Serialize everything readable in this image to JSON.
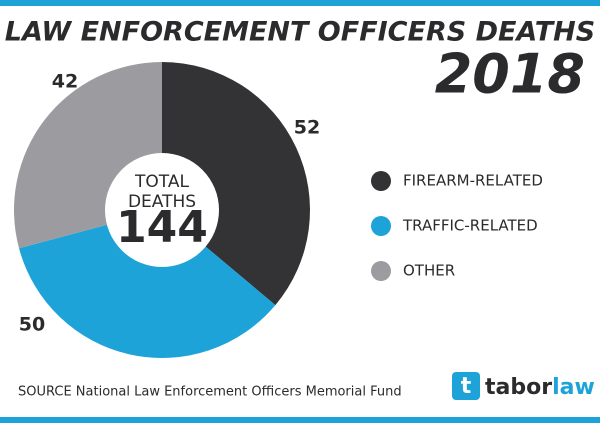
{
  "chart_data": {
    "type": "donut",
    "title": "LAW ENFORCEMENT OFFICERS DEATHS",
    "subtitle": "2018",
    "categories": [
      "FIREARM-RELATED",
      "TRAFFIC-RELATED",
      "OTHER"
    ],
    "values": [
      52,
      50,
      42
    ],
    "colors": [
      "#333336",
      "#1ea3d9",
      "#9c9ca0"
    ],
    "center_label": [
      "TOTAL",
      "DEATHS"
    ],
    "total": 144,
    "source": "SOURCE National Law Enforcement Officers Memorial Fund",
    "logo": {
      "icon": "t",
      "name": "tabor",
      "suffix": "law"
    }
  }
}
